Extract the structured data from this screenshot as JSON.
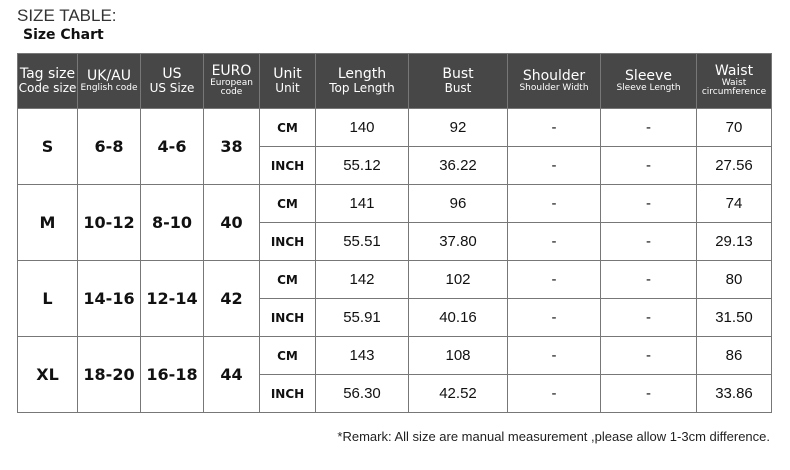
{
  "title": "SIZE TABLE:",
  "subtitle": "Size Chart",
  "headers": [
    {
      "main": "Tag size",
      "sub": "Code size",
      "subStyle": "bb"
    },
    {
      "main": "UK/AU",
      "sub": "English code",
      "subStyle": "b"
    },
    {
      "main": "US",
      "sub": "US Size",
      "subStyle": "bb"
    },
    {
      "main": "EURO",
      "sub": "European code",
      "subStyle": "b"
    },
    {
      "main": "Unit",
      "sub": "Unit",
      "subStyle": "bb"
    },
    {
      "main": "Length",
      "sub": "Top Length",
      "subStyle": "bb"
    },
    {
      "main": "Bust",
      "sub": "Bust",
      "subStyle": "bb"
    },
    {
      "main": "Shoulder",
      "sub": "Shoulder Width",
      "subStyle": "b"
    },
    {
      "main": "Sleeve",
      "sub": "Sleeve Length",
      "subStyle": "b"
    },
    {
      "main": "Waist",
      "sub": "Waist circumference",
      "subStyle": "b"
    }
  ],
  "sizes": [
    {
      "tag": "S",
      "uk": "6-8",
      "us": "4-6",
      "euro": "38",
      "rows": [
        {
          "unit": "CM",
          "vals": [
            "140",
            "92",
            "-",
            "-",
            "70"
          ]
        },
        {
          "unit": "INCH",
          "vals": [
            "55.12",
            "36.22",
            "-",
            "-",
            "27.56"
          ]
        }
      ]
    },
    {
      "tag": "M",
      "uk": "10-12",
      "us": "8-10",
      "euro": "40",
      "rows": [
        {
          "unit": "CM",
          "vals": [
            "141",
            "96",
            "-",
            "-",
            "74"
          ]
        },
        {
          "unit": "INCH",
          "vals": [
            "55.51",
            "37.80",
            "-",
            "-",
            "29.13"
          ]
        }
      ]
    },
    {
      "tag": "L",
      "uk": "14-16",
      "us": "12-14",
      "euro": "42",
      "rows": [
        {
          "unit": "CM",
          "vals": [
            "142",
            "102",
            "-",
            "-",
            "80"
          ]
        },
        {
          "unit": "INCH",
          "vals": [
            "55.91",
            "40.16",
            "-",
            "-",
            "31.50"
          ]
        }
      ]
    },
    {
      "tag": "XL",
      "uk": "18-20",
      "us": "16-18",
      "euro": "44",
      "rows": [
        {
          "unit": "CM",
          "vals": [
            "143",
            "108",
            "-",
            "-",
            "86"
          ]
        },
        {
          "unit": "INCH",
          "vals": [
            "56.30",
            "42.52",
            "-",
            "-",
            "33.86"
          ]
        }
      ]
    }
  ],
  "remark": "*Remark: All size are manual measurement ,please allow 1-3cm difference."
}
